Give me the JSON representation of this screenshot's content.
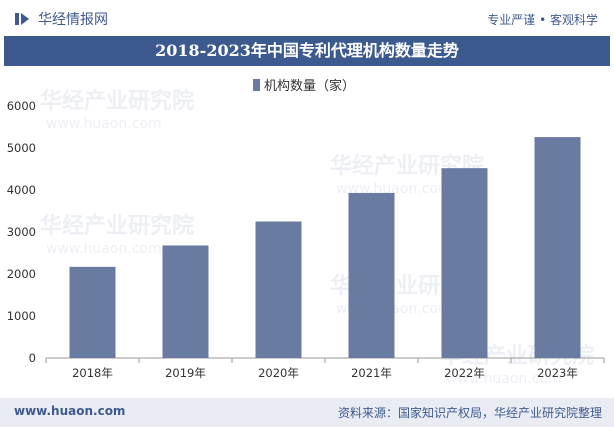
{
  "header": {
    "brand": "华经情报网",
    "tagline": "专业严谨 • 客观科学"
  },
  "chart_data": {
    "type": "bar",
    "title": "2018-2023年中国专利代理机构数量走势",
    "categories": [
      "2018年",
      "2019年",
      "2020年",
      "2021年",
      "2022年",
      "2023年"
    ],
    "series": [
      {
        "name": "机构数量（家）",
        "values": [
          2170,
          2680,
          3250,
          3930,
          4520,
          5260
        ]
      }
    ],
    "ylim": [
      0,
      6000
    ],
    "yticks": [
      0,
      1000,
      2000,
      3000,
      4000,
      5000,
      6000
    ],
    "legend": "top-center",
    "grid": false,
    "bar_color": "#6a7ba2"
  },
  "watermark": {
    "text": "华经产业研究院",
    "url": "www.huaon.com"
  },
  "footer": {
    "site": "www.huaon.com",
    "source": "资料来源：国家知识产权局，华经产业研究院整理"
  }
}
